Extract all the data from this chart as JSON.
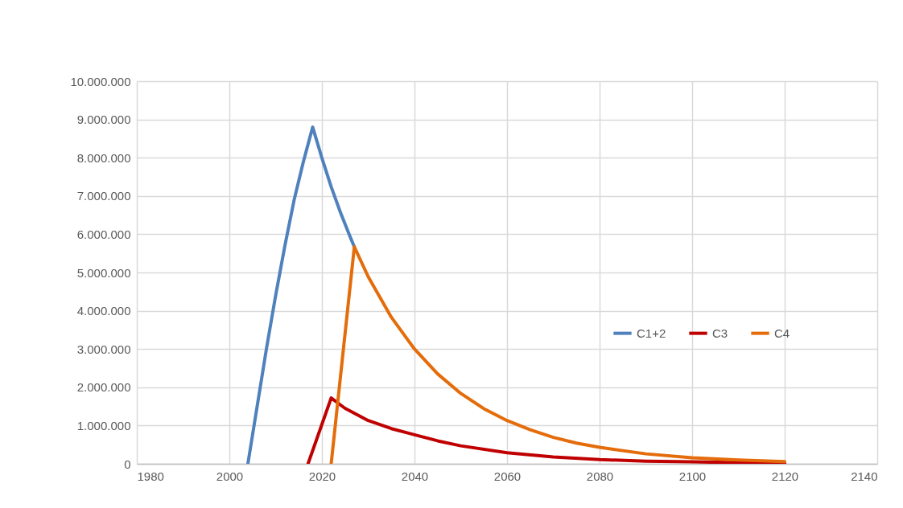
{
  "chart_data": {
    "type": "line",
    "series": [
      {
        "name": "C1+2",
        "color": "#4f81bd",
        "x": [
          2004,
          2006,
          2008,
          2010,
          2012,
          2014,
          2016,
          2018,
          2020,
          2022,
          2024,
          2026,
          2027
        ],
        "values": [
          0,
          1500000,
          3000000,
          4400000,
          5700000,
          6900000,
          7900000,
          8800000,
          7990000,
          7240000,
          6570000,
          5960000,
          5670000
        ]
      },
      {
        "name": "C3",
        "color": "#c00000",
        "x": [
          2017,
          2022,
          2025,
          2030,
          2035,
          2040,
          2045,
          2050,
          2060,
          2070,
          2080,
          2090,
          2100,
          2110,
          2120
        ],
        "values": [
          0,
          1720000,
          1450000,
          1130000,
          920000,
          760000,
          600000,
          470000,
          290000,
          180000,
          110000,
          70000,
          50000,
          30000,
          20000
        ]
      },
      {
        "name": "C4",
        "color": "#e46c0a",
        "x": [
          2022,
          2027,
          2030,
          2035,
          2040,
          2045,
          2050,
          2055,
          2060,
          2065,
          2070,
          2075,
          2080,
          2090,
          2100,
          2110,
          2120
        ],
        "values": [
          0,
          5670000,
          4890000,
          3830000,
          3000000,
          2350000,
          1840000,
          1440000,
          1130000,
          890000,
          690000,
          540000,
          430000,
          260000,
          160000,
          100000,
          60000
        ]
      }
    ],
    "xlim": [
      1980,
      2140
    ],
    "xticks": [
      1980,
      2000,
      2020,
      2040,
      2060,
      2080,
      2100,
      2120,
      2140
    ],
    "ylim": [
      0,
      10000000
    ],
    "yticks": [
      0,
      {
        "value": 1000000,
        "label": "1.000.000"
      },
      {
        "value": 2000000,
        "label": "2.000.000"
      },
      {
        "value": 3000000,
        "label": "3.000.000"
      },
      {
        "value": 4000000,
        "label": "4.000.000"
      },
      {
        "value": 5000000,
        "label": "5.000.000"
      },
      {
        "value": 6000000,
        "label": "6.000.000"
      },
      {
        "value": 7000000,
        "label": "7.000.000"
      },
      {
        "value": 8000000,
        "label": "8.000.000"
      },
      {
        "value": 9000000,
        "label": "9.000.000"
      },
      {
        "value": 10000000,
        "label": "10.000.000"
      }
    ],
    "grid": true,
    "legend": "right",
    "marker": "none",
    "line_style": "solid"
  }
}
